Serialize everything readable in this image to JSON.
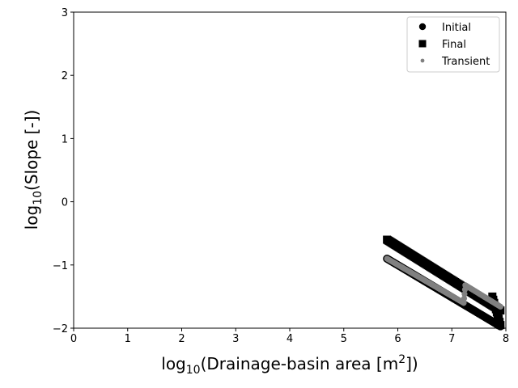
{
  "chart_data": {
    "type": "scatter",
    "xlabel": {
      "pre": "log",
      "sub": "10",
      "mid": "(Drainage-basin area [m",
      "sup": "2",
      "post": "])"
    },
    "ylabel": {
      "pre": "log",
      "sub": "10",
      "post": "(Slope [-])"
    },
    "xlim": [
      0,
      8
    ],
    "ylim": [
      -2,
      3
    ],
    "xticks": [
      0,
      1,
      2,
      3,
      4,
      5,
      6,
      7,
      8
    ],
    "yticks": [
      -2,
      -1,
      0,
      1,
      2,
      3
    ],
    "xtick_labels": [
      "0",
      "1",
      "2",
      "3",
      "4",
      "5",
      "6",
      "7",
      "8"
    ],
    "ytick_labels": [
      "−2",
      "−1",
      "0",
      "1",
      "2",
      "3"
    ],
    "grid": false,
    "legend_position": "top-right",
    "series": [
      {
        "name": "Initial",
        "marker": "circle",
        "color": "#000000",
        "segments": [
          {
            "x": [
              5.8,
              7.9
            ],
            "y": [
              -0.9,
              -1.97
            ]
          }
        ]
      },
      {
        "name": "Final",
        "marker": "square",
        "color": "#000000",
        "segments": [
          {
            "x": [
              5.8,
              7.9
            ],
            "y": [
              -0.6,
              -1.72
            ]
          },
          {
            "x": [
              7.75,
              7.9
            ],
            "y": [
              -1.5,
              -1.95
            ]
          }
        ]
      },
      {
        "name": "Transient",
        "marker": "dot",
        "color": "#808080",
        "segments": [
          {
            "x": [
              5.8,
              7.22
            ],
            "y": [
              -0.9,
              -1.6
            ]
          },
          {
            "x": [
              7.22,
              7.25
            ],
            "y": [
              -1.6,
              -1.32
            ]
          },
          {
            "x": [
              7.25,
              7.9
            ],
            "y": [
              -1.32,
              -1.66
            ]
          }
        ]
      }
    ]
  }
}
